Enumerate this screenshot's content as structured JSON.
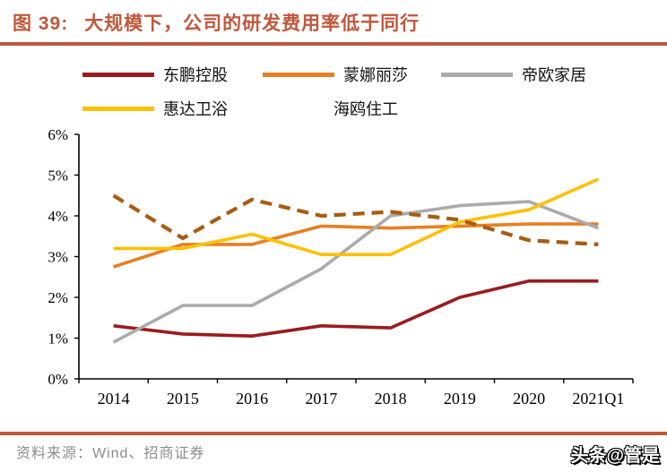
{
  "header": {
    "figure_label": "图 39:",
    "title": "大规模下，公司的研发费用率低于同行",
    "accent_color": "#C0573C"
  },
  "legend": {
    "items": [
      {
        "label": "东鹏控股",
        "color": "#9A1B1E",
        "style": "solid"
      },
      {
        "label": "蒙娜丽莎",
        "color": "#E87E22",
        "style": "solid"
      },
      {
        "label": "帝欧家居",
        "color": "#ABABAB",
        "style": "solid"
      },
      {
        "label": "惠达卫浴",
        "color": "#FFC000",
        "style": "solid"
      },
      {
        "label": "海鸥住工",
        "color": "#A85C12",
        "style": "dashed"
      }
    ]
  },
  "chart_data": {
    "type": "line",
    "title": "",
    "xlabel": "",
    "ylabel": "",
    "categories": [
      "2014",
      "2015",
      "2016",
      "2017",
      "2018",
      "2019",
      "2020",
      "2021Q1"
    ],
    "series": [
      {
        "name": "东鹏控股",
        "color": "#9A1B1E",
        "style": "solid",
        "values": [
          1.3,
          1.1,
          1.05,
          1.3,
          1.25,
          2.0,
          2.4,
          2.4
        ]
      },
      {
        "name": "蒙娜丽莎",
        "color": "#E87E22",
        "style": "solid",
        "values": [
          2.75,
          3.3,
          3.3,
          3.75,
          3.7,
          3.75,
          3.8,
          3.8
        ]
      },
      {
        "name": "帝欧家居",
        "color": "#ABABAB",
        "style": "solid",
        "values": [
          0.9,
          1.8,
          1.8,
          2.7,
          4.0,
          4.25,
          4.35,
          3.7
        ]
      },
      {
        "name": "惠达卫浴",
        "color": "#FFC000",
        "style": "solid",
        "values": [
          3.2,
          3.2,
          3.55,
          3.05,
          3.05,
          3.85,
          4.15,
          4.9
        ]
      },
      {
        "name": "海鸥住工",
        "color": "#A85C12",
        "style": "dashed",
        "values": [
          4.5,
          3.45,
          4.4,
          4.0,
          4.1,
          3.9,
          3.4,
          3.3
        ]
      }
    ],
    "ylim": [
      0,
      6
    ],
    "ytick_step": 1,
    "ytick_suffix": "%",
    "grid": false,
    "legend_position": "top"
  },
  "footer": {
    "source": "资料来源：Wind、招商证券",
    "watermark": "头条@管是"
  }
}
